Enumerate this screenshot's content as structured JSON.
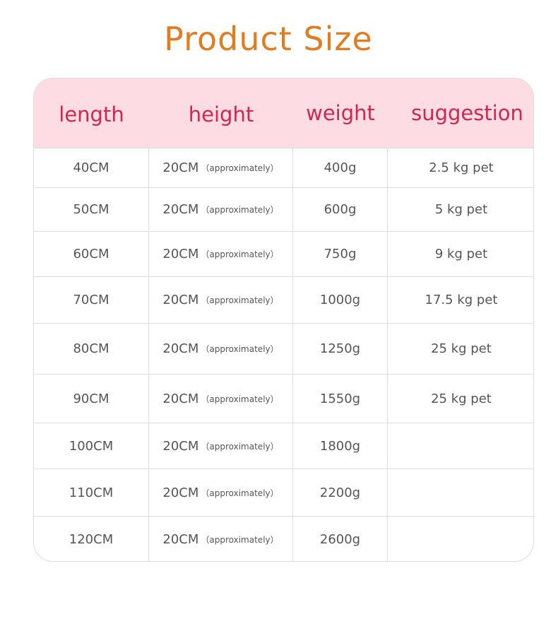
{
  "title": "Product Size",
  "headers": [
    "length",
    "height",
    "weight",
    "suggestion"
  ],
  "approx_note": "（approximately）",
  "rows": [
    {
      "length": "40CM",
      "height": "20CM",
      "weight": "400g",
      "suggestion": "2.5 kg pet"
    },
    {
      "length": "50CM",
      "height": "20CM",
      "weight": "600g",
      "suggestion": "5 kg pet"
    },
    {
      "length": "60CM",
      "height": "20CM",
      "weight": "750g",
      "suggestion": "9 kg pet"
    },
    {
      "length": "70CM",
      "height": "20CM",
      "weight": "1000g",
      "suggestion": "17.5 kg pet"
    },
    {
      "length": "80CM",
      "height": "20CM",
      "weight": "1250g",
      "suggestion": "25 kg pet"
    },
    {
      "length": "90CM",
      "height": "20CM",
      "weight": "1550g",
      "suggestion": "25 kg pet"
    },
    {
      "length": "100CM",
      "height": "20CM",
      "weight": "1800g",
      "suggestion": ""
    },
    {
      "length": "110CM",
      "height": "20CM",
      "weight": "2200g",
      "suggestion": ""
    },
    {
      "length": "120CM",
      "height": "20CM",
      "weight": "2600g",
      "suggestion": ""
    }
  ]
}
